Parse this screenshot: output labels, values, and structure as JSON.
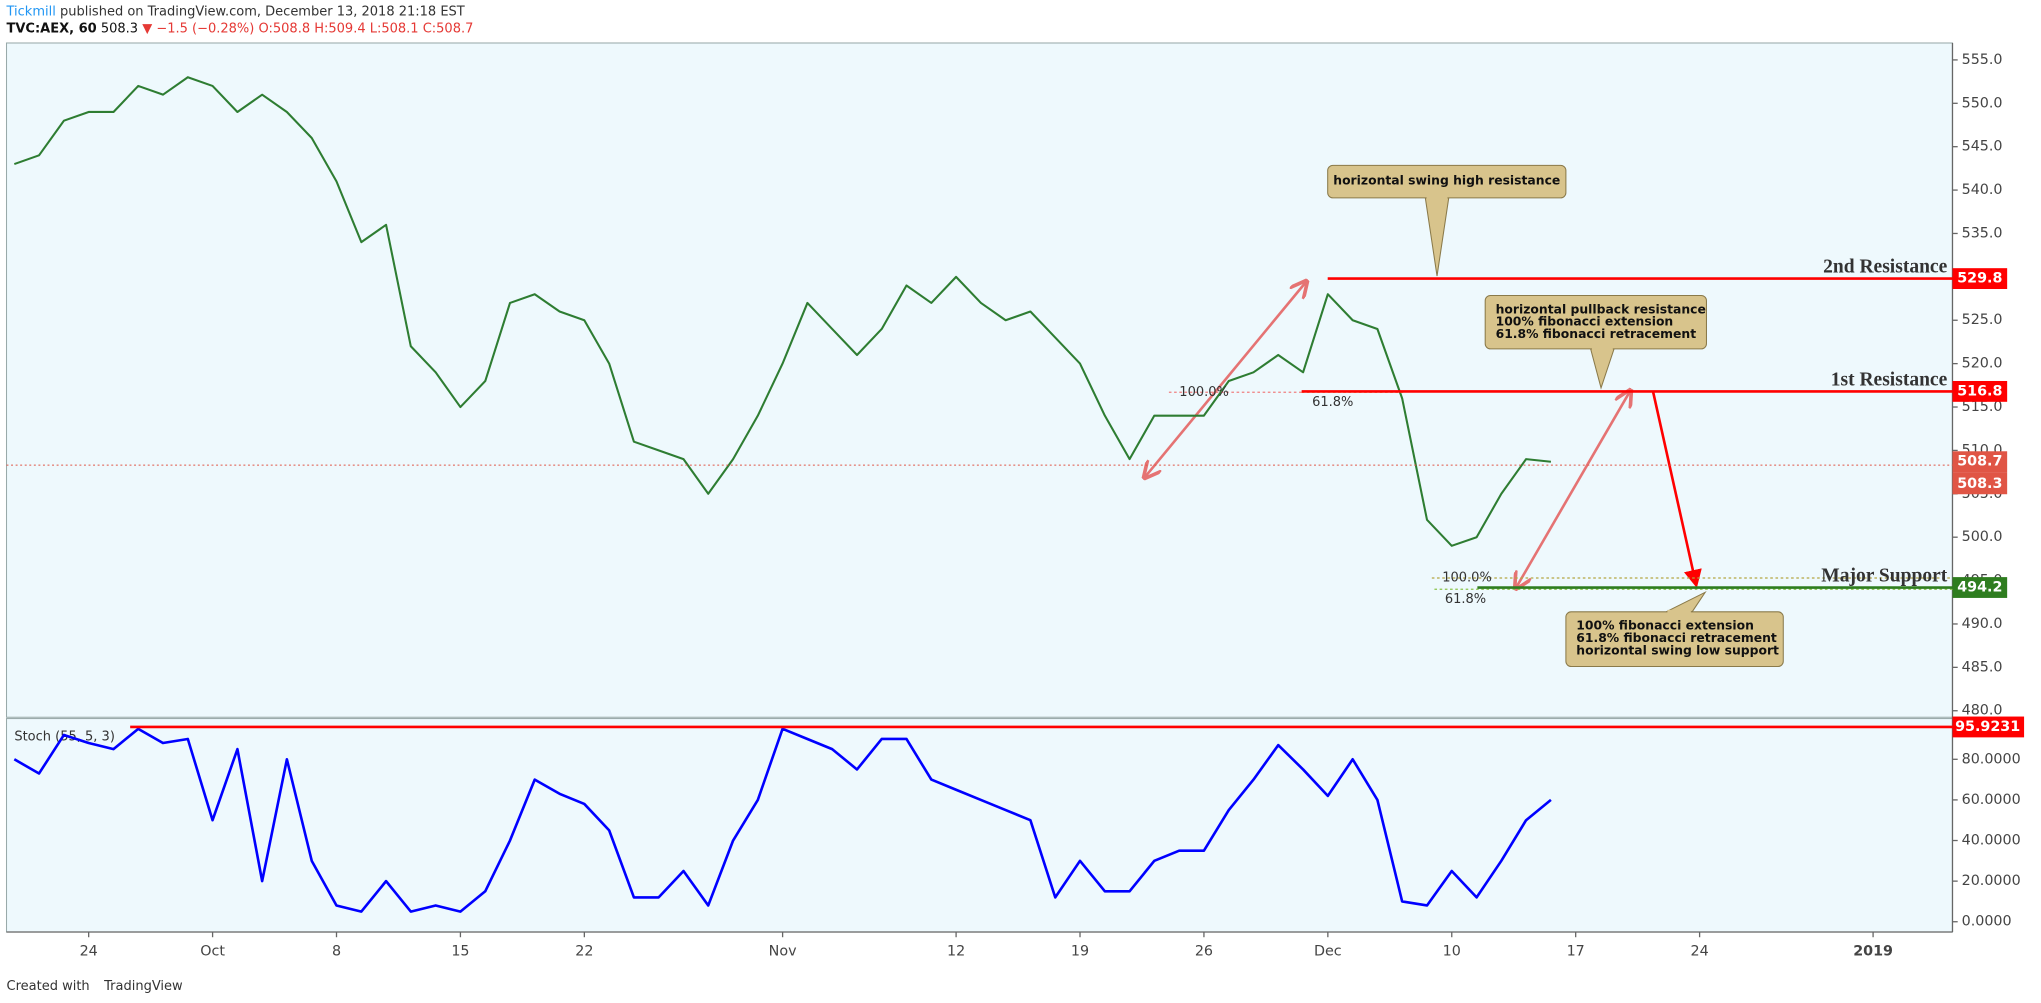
{
  "header": {
    "publisher": "Tickmill",
    "byline": " published on TradingView.com, December 13, 2018 21:18 EST",
    "symbol": "TVC:AEX, 60",
    "price": "508.3",
    "change": "▼ −1.5 (−0.28%)",
    "ohlc": "O:508.8 H:509.4 L:508.1 C:508.7"
  },
  "footer": {
    "created": "Created with",
    "brand": "TradingView"
  },
  "chart_data": {
    "type": "line",
    "categories": [
      null,
      null,
      null,
      "24",
      null,
      null,
      null,
      null,
      "Oct",
      null,
      null,
      null,
      null,
      "8",
      null,
      null,
      null,
      null,
      "15",
      null,
      null,
      null,
      null,
      "22",
      null,
      null,
      null,
      null,
      null,
      null,
      null,
      "Nov",
      null,
      null,
      null,
      null,
      null,
      null,
      "12",
      null,
      null,
      null,
      null,
      "19",
      null,
      null,
      null,
      null,
      "26",
      null,
      null,
      null,
      null,
      "Dec",
      null,
      null,
      null,
      null,
      "10",
      null,
      null,
      null,
      null,
      "17",
      null,
      null,
      null,
      null,
      "24",
      null,
      null,
      null,
      null,
      null,
      null,
      "2019"
    ],
    "series": [
      {
        "color": "#2e7d32",
        "values": [
          543,
          544,
          548,
          549,
          549,
          552,
          551,
          553,
          552,
          549,
          551,
          549,
          546,
          541,
          534,
          536,
          522,
          519,
          515,
          518,
          527,
          528,
          526,
          525,
          520,
          511,
          510,
          509,
          505,
          509,
          514,
          520,
          527,
          524,
          521,
          524,
          529,
          527,
          530,
          527,
          525,
          526,
          523,
          520,
          514,
          509,
          514,
          514,
          514,
          518,
          519,
          521,
          519,
          528,
          525,
          524,
          516,
          502,
          499,
          500,
          505,
          509,
          508.7,
          null,
          null,
          null,
          null,
          null,
          null,
          null,
          null,
          null,
          null,
          null,
          null,
          null
        ]
      },
      {
        "axis": "y2",
        "color": "#0000ff",
        "values": [
          80,
          73,
          92,
          88,
          85,
          95,
          88,
          90,
          50,
          85,
          20,
          80,
          30,
          8,
          5,
          20,
          5,
          8,
          5,
          15,
          40,
          70,
          63,
          58,
          45,
          12,
          12,
          25,
          8,
          40,
          60,
          95,
          90,
          85,
          75,
          90,
          90,
          70,
          65,
          60,
          55,
          50,
          12,
          30,
          15,
          15,
          30,
          35,
          35,
          55,
          70,
          87,
          75,
          62,
          80,
          60,
          10,
          8,
          25,
          12,
          30,
          50,
          60,
          null,
          null,
          null,
          null,
          null,
          null,
          null,
          null,
          null,
          null,
          null,
          null,
          null
        ]
      }
    ],
    "ylim": [
      480,
      555
    ],
    "yticks": [
      {
        "value": 480,
        "label": "480.0"
      },
      {
        "value": 485,
        "label": "485.0"
      },
      {
        "value": 490,
        "label": "490.0"
      },
      {
        "value": 495,
        "label": "495.0"
      },
      {
        "value": 500,
        "label": "500.0"
      },
      {
        "value": 505,
        "label": "505.0"
      },
      {
        "value": 510,
        "label": "510.0"
      },
      {
        "value": 515,
        "label": "515.0"
      },
      {
        "value": 520,
        "label": "520.0"
      },
      {
        "value": 525,
        "label": "525.0"
      },
      {
        "value": 530,
        "label": "530.0"
      },
      {
        "value": 535,
        "label": "535.0"
      },
      {
        "value": 540,
        "label": "540.0"
      },
      {
        "value": 545,
        "label": "545.0"
      },
      {
        "value": 550,
        "label": "550.0"
      },
      {
        "value": 555,
        "label": "555.0"
      }
    ],
    "y2lim": [
      -2.5,
      97.5
    ],
    "y2ticks": [
      {
        "value": 0,
        "label": "0.0000"
      },
      {
        "value": 20,
        "label": "20.0000"
      },
      {
        "value": 40,
        "label": "40.0000"
      },
      {
        "value": 60,
        "label": "60.0000"
      },
      {
        "value": 80,
        "label": "80.0000"
      }
    ],
    "stoch_label": "Stoch (55, 5, 3)",
    "stoch_level": {
      "value": 95.9231,
      "color": "#ff0000"
    },
    "price_line": {
      "value": 508.3,
      "color": "#e05545"
    },
    "levels": [
      {
        "name": "2nd Resistance",
        "value": 529.8,
        "color": "#ff0000"
      },
      {
        "name": "1st Resistance",
        "value": 516.8,
        "color": "#ff0000"
      },
      {
        "name": "Major Support",
        "value": 494.2,
        "color": "#2e7d1f"
      }
    ],
    "fibs": [
      {
        "label": "100.0%",
        "value": 516.7,
        "color": "#f08080"
      },
      {
        "label": "61.8%",
        "value": 516.7,
        "color": "#e6a23c"
      },
      {
        "label": "100.0%",
        "value": 495.3,
        "color": "#b5a642"
      },
      {
        "label": "61.8%",
        "value": 494.0,
        "color": "#8bc34a"
      }
    ],
    "callouts": [
      {
        "lines": [
          "horizontal swing high resistance"
        ]
      },
      {
        "lines": [
          "horizontal pullback resistance",
          "100% fibonacci extension",
          "61.8% fibonacci retracement"
        ]
      },
      {
        "lines": [
          "100% fibonacci extension",
          "61.8% fibonacci retracement",
          "horizontal swing low support"
        ]
      }
    ]
  }
}
